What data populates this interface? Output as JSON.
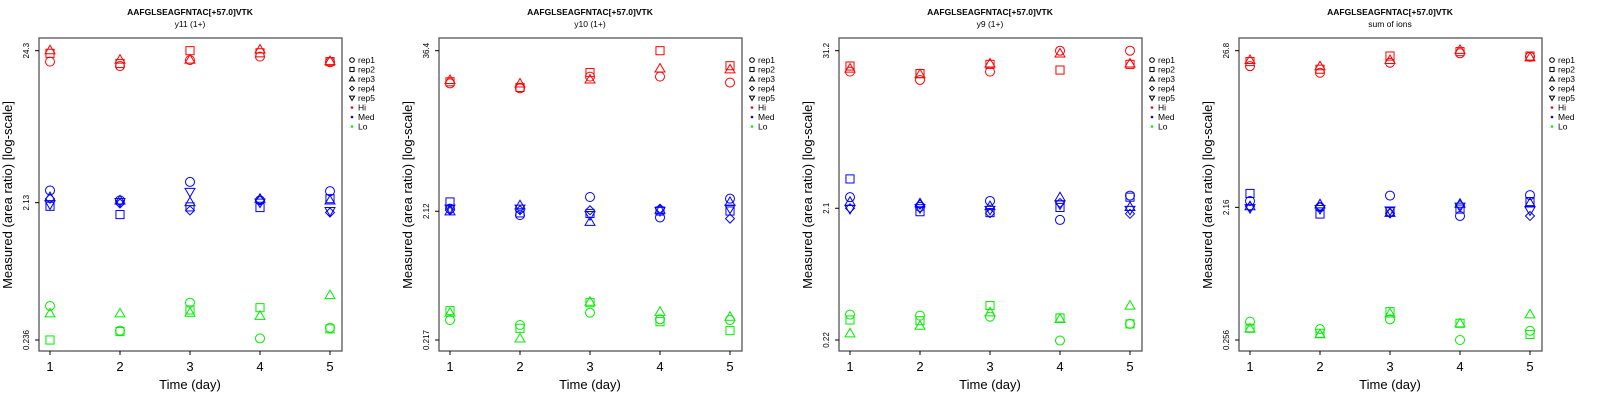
{
  "colors": {
    "Hi": "#ff0000",
    "Med": "#0000ff",
    "Lo": "#00ee00",
    "axis": "#555555"
  },
  "legend": {
    "reps": [
      {
        "label": "rep1",
        "shape": "circle"
      },
      {
        "label": "rep2",
        "shape": "square"
      },
      {
        "label": "rep3",
        "shape": "triangle-up"
      },
      {
        "label": "rep4",
        "shape": "diamond"
      },
      {
        "label": "rep5",
        "shape": "triangle-down"
      }
    ],
    "levels": [
      "Hi",
      "Med",
      "Lo"
    ]
  },
  "chart_data": [
    {
      "type": "scatter",
      "title": "AAFGLSEAGFNTAC[+57.0]VTK",
      "subtitle": "y11 (1+)",
      "xlabel": "Time (day)",
      "ylabel": "Measured (area ratio) [log-scale]",
      "yscale": "log",
      "x": [
        1,
        2,
        3,
        4,
        5
      ],
      "x_tick_labels": [
        "1",
        "2",
        "3",
        "4",
        "5"
      ],
      "y_ticks": [
        24.3,
        2.13,
        0.236
      ],
      "y_tick_labels": [
        "24.3",
        "2.13",
        "0.236"
      ],
      "legend_position": "right",
      "series": {
        "Hi": [
          [
            20.4,
            23.3,
            24.5
          ],
          [
            19.0,
            19.8,
            21.1
          ],
          [
            20.9,
            24.3,
            21.1
          ],
          [
            22.1,
            23.5,
            24.8
          ],
          [
            20.2,
            20.4,
            20.6
          ]
        ],
        "Med": [
          [
            2.59,
            2.01,
            2.33,
            2.27,
            2.07
          ],
          [
            2.21,
            1.76,
            2.21,
            2.1,
            2.15
          ],
          [
            2.97,
            1.99,
            2.15,
            1.88,
            2.53
          ],
          [
            2.21,
            1.97,
            2.27,
            2.21,
            2.13
          ],
          [
            2.56,
            2.27,
            2.21,
            1.82,
            1.86
          ]
        ],
        "Lo": [
          [
            0.407,
            0.236,
            0.362
          ],
          [
            0.274,
            0.27,
            0.362
          ],
          [
            0.429,
            0.382,
            0.366
          ],
          [
            0.242,
            0.396,
            0.348
          ],
          [
            0.287,
            0.282,
            0.485
          ]
        ]
      }
    },
    {
      "type": "scatter",
      "title": "AAFGLSEAGFNTAC[+57.0]VTK",
      "subtitle": "y10 (1+)",
      "xlabel": "Time (day)",
      "ylabel": "Measured (area ratio) [log-scale]",
      "yscale": "log",
      "x": [
        1,
        2,
        3,
        4,
        5
      ],
      "x_tick_labels": [
        "1",
        "2",
        "3",
        "4",
        "5"
      ],
      "y_ticks": [
        36.4,
        2.12,
        0.217
      ],
      "y_tick_labels": [
        "36.4",
        "2.12",
        "0.217"
      ],
      "legend_position": "right",
      "series": {
        "Hi": [
          [
            20.4,
            21.0,
            21.7
          ],
          [
            18.7,
            19.0,
            20.4
          ],
          [
            23.0,
            24.7,
            21.9
          ],
          [
            23.0,
            36.4,
            26.6
          ],
          [
            20.7,
            27.9,
            26.2
          ]
        ],
        "Med": [
          [
            2.22,
            2.5,
            2.12,
            2.16,
            2.22
          ],
          [
            1.98,
            2.06,
            2.36,
            2.16,
            2.22
          ],
          [
            2.73,
            2.04,
            1.76,
            2.16,
            1.98
          ],
          [
            1.9,
            2.13,
            2.18,
            2.22,
            2.13
          ],
          [
            2.65,
            2.13,
            2.5,
            1.86,
            2.22
          ]
        ],
        "Lo": [
          [
            0.309,
            0.365,
            0.352
          ],
          [
            0.283,
            0.267,
            0.223
          ],
          [
            0.352,
            0.42,
            0.428
          ],
          [
            0.313,
            0.3,
            0.358
          ],
          [
            0.309,
            0.256,
            0.328
          ]
        ]
      }
    },
    {
      "type": "scatter",
      "title": "AAFGLSEAGFNTAC[+57.0]VTK",
      "subtitle": "y9 (1+)",
      "xlabel": "Time (day)",
      "ylabel": "Measured (area ratio) [log-scale]",
      "yscale": "log",
      "x": [
        1,
        2,
        3,
        4,
        5
      ],
      "x_tick_labels": [
        "1",
        "2",
        "3",
        "4",
        "5"
      ],
      "y_ticks": [
        31.2,
        2.1,
        0.22
      ],
      "y_tick_labels": [
        "31.2",
        "2.1",
        "0.22"
      ],
      "legend_position": "right",
      "series": {
        "Hi": [
          [
            21.8,
            24.0,
            23.0
          ],
          [
            18.9,
            21.1,
            20.9
          ],
          [
            21.8,
            24.7,
            25.1
          ],
          [
            31.2,
            22.4,
            29.8
          ],
          [
            31.2,
            24.7,
            25.1
          ]
        ],
        "Med": [
          [
            2.54,
            3.47,
            2.35,
            2.1,
            2.07
          ],
          [
            2.15,
            1.98,
            2.29,
            2.24,
            2.1
          ],
          [
            2.38,
            1.95,
            2.18,
            1.93,
            2.04
          ],
          [
            1.72,
            2.13,
            2.54,
            2.3,
            2.24
          ],
          [
            2.61,
            2.54,
            2.15,
            1.91,
            2.04
          ]
        ],
        "Lo": [
          [
            0.34,
            0.31,
            0.247
          ],
          [
            0.334,
            0.306,
            0.281
          ],
          [
            0.328,
            0.397,
            0.354
          ],
          [
            0.218,
            0.321,
            0.316
          ],
          [
            0.29,
            0.29,
            0.397
          ]
        ]
      }
    },
    {
      "type": "scatter",
      "title": "AAFGLSEAGFNTAC[+57.0]VTK",
      "subtitle": "sum of ions",
      "xlabel": "Time (day)",
      "ylabel": "Measured (area ratio) [log-scale]",
      "yscale": "log",
      "x": [
        1,
        2,
        3,
        4,
        5
      ],
      "x_tick_labels": [
        "1",
        "2",
        "3",
        "4",
        "5"
      ],
      "y_ticks": [
        26.8,
        2.16,
        0.256
      ],
      "y_tick_labels": [
        "26.8",
        "2.16",
        "0.256"
      ],
      "legend_position": "right",
      "series": {
        "Hi": [
          [
            20.9,
            22.5,
            23.1
          ],
          [
            18.8,
            19.9,
            20.9
          ],
          [
            22.1,
            24.6,
            23.1
          ],
          [
            25.7,
            26.4,
            27.2
          ],
          [
            24.3,
            24.6,
            24.1
          ]
        ],
        "Med": [
          [
            2.39,
            2.7,
            2.2,
            2.18,
            2.13
          ],
          [
            2.16,
            1.94,
            2.27,
            2.18,
            2.1
          ],
          [
            2.61,
            2.01,
            1.98,
            1.96,
            2.05
          ],
          [
            1.88,
            2.1,
            2.29,
            2.24,
            2.18
          ],
          [
            2.63,
            2.37,
            2.32,
            1.88,
            2.05
          ]
        ],
        "Lo": [
          [
            0.344,
            0.309,
            0.309
          ],
          [
            0.305,
            0.285,
            0.281
          ],
          [
            0.357,
            0.404,
            0.393
          ],
          [
            0.256,
            0.335,
            0.335
          ],
          [
            0.297,
            0.28,
            0.387
          ]
        ]
      }
    }
  ]
}
